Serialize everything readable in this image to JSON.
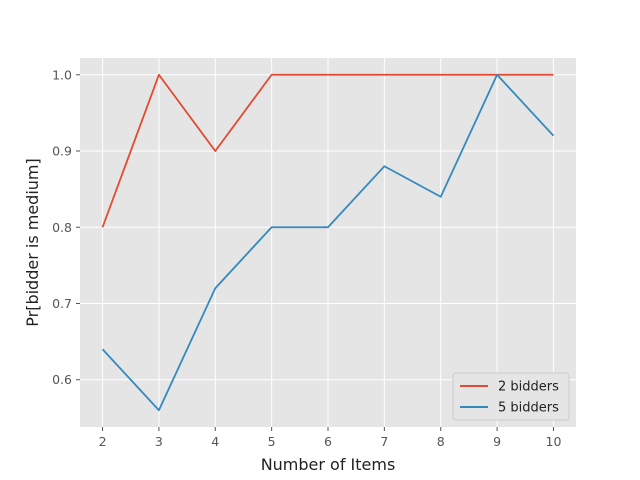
{
  "chart_data": {
    "type": "line",
    "title": "",
    "xlabel": "Number of Items",
    "ylabel": "Pr[bidder is medium]",
    "x": [
      2,
      3,
      4,
      5,
      6,
      7,
      8,
      9,
      10
    ],
    "xlim": [
      1.6,
      10.4
    ],
    "ylim": [
      0.538,
      1.022
    ],
    "x_ticks": [
      "2",
      "3",
      "4",
      "5",
      "6",
      "7",
      "8",
      "9",
      "10"
    ],
    "y_ticks": [
      0.6,
      0.7,
      0.8,
      0.9,
      1.0
    ],
    "y_tick_labels": [
      "0.6",
      "0.7",
      "0.8",
      "0.9",
      "1.0"
    ],
    "grid": true,
    "legend_position": "lower-right",
    "series": [
      {
        "name": "2 bidders",
        "color": "#E24A33",
        "values": [
          0.8,
          1.0,
          0.9,
          1.0,
          1.0,
          1.0,
          1.0,
          1.0,
          1.0
        ]
      },
      {
        "name": "5 bidders",
        "color": "#348ABD",
        "values": [
          0.64,
          0.56,
          0.72,
          0.8,
          0.8,
          0.88,
          0.84,
          1.0,
          0.92
        ]
      }
    ]
  }
}
